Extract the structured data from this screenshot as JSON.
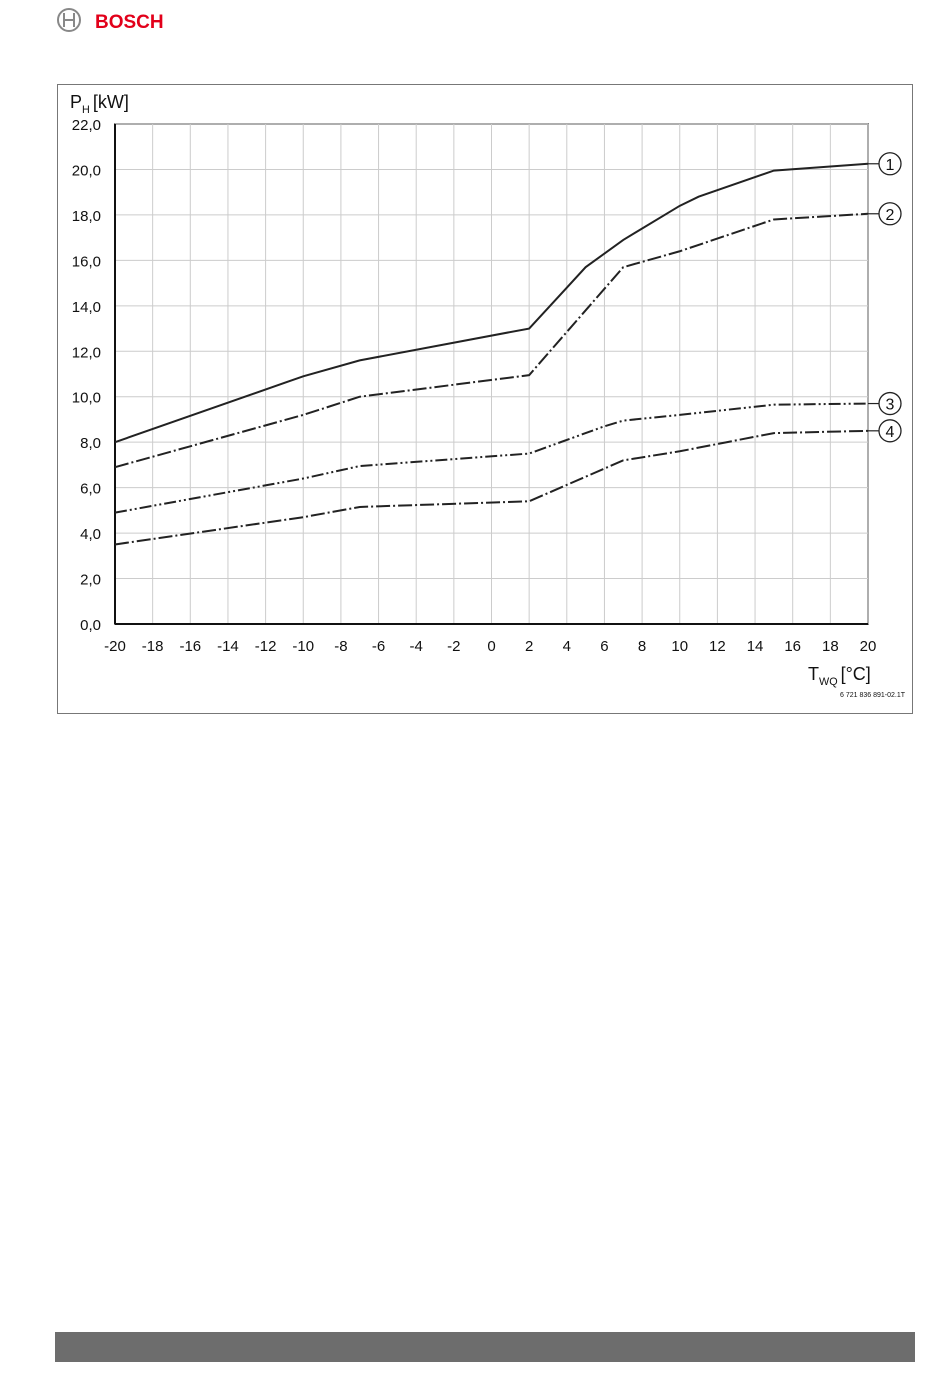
{
  "header": {
    "brand": "BOSCH"
  },
  "chart_data": {
    "type": "line",
    "ylabel": {
      "symbol": "P",
      "subscript": "H",
      "unit": "[kW]"
    },
    "xlabel": {
      "symbol": "T",
      "subscript": "WQ",
      "unit": "[°C]"
    },
    "figure_code": "6 721 836 891-02.1T",
    "xlim": [
      -20,
      20
    ],
    "ylim": [
      0,
      22
    ],
    "xticks": [
      -20,
      -18,
      -16,
      -14,
      -12,
      -10,
      -8,
      -6,
      -4,
      -2,
      0,
      2,
      4,
      6,
      8,
      10,
      12,
      14,
      16,
      18,
      20
    ],
    "yticks": [
      {
        "value": 0,
        "label": "0,0"
      },
      {
        "value": 2,
        "label": "2,0"
      },
      {
        "value": 4,
        "label": "4,0"
      },
      {
        "value": 6,
        "label": "6,0"
      },
      {
        "value": 8,
        "label": "8,0"
      },
      {
        "value": 10,
        "label": "10,0"
      },
      {
        "value": 12,
        "label": "12,0"
      },
      {
        "value": 14,
        "label": "14,0"
      },
      {
        "value": 16,
        "label": "16,0"
      },
      {
        "value": 18,
        "label": "18,0"
      },
      {
        "value": 20,
        "label": "20,0"
      },
      {
        "value": 22,
        "label": "22,0"
      }
    ],
    "grid": true,
    "series": [
      {
        "name": "1",
        "color": "#222222",
        "style": "solid",
        "x": [
          -20,
          -10,
          -7,
          2,
          4,
          5,
          7,
          10,
          11,
          15,
          20
        ],
        "values": [
          8.0,
          10.9,
          11.6,
          13.0,
          14.8,
          15.7,
          16.9,
          18.4,
          18.8,
          19.95,
          20.25
        ]
      },
      {
        "name": "2",
        "color": "#222222",
        "style": "dashdot",
        "x": [
          -20,
          -10,
          -7,
          2,
          7,
          10,
          15,
          20
        ],
        "values": [
          6.9,
          9.2,
          10.0,
          10.95,
          15.7,
          16.4,
          17.8,
          18.05
        ]
      },
      {
        "name": "3",
        "color": "#222222",
        "style": "dashdotdot",
        "x": [
          -20,
          -10,
          -7,
          2,
          6,
          7,
          10,
          15,
          20
        ],
        "values": [
          4.9,
          6.4,
          6.95,
          7.5,
          8.7,
          8.95,
          9.2,
          9.65,
          9.7
        ]
      },
      {
        "name": "4",
        "color": "#222222",
        "style": "dashdot",
        "x": [
          -20,
          -10,
          -7,
          2,
          7,
          10,
          15,
          20
        ],
        "values": [
          3.5,
          4.7,
          5.15,
          5.4,
          7.2,
          7.6,
          8.4,
          8.5
        ]
      }
    ]
  }
}
